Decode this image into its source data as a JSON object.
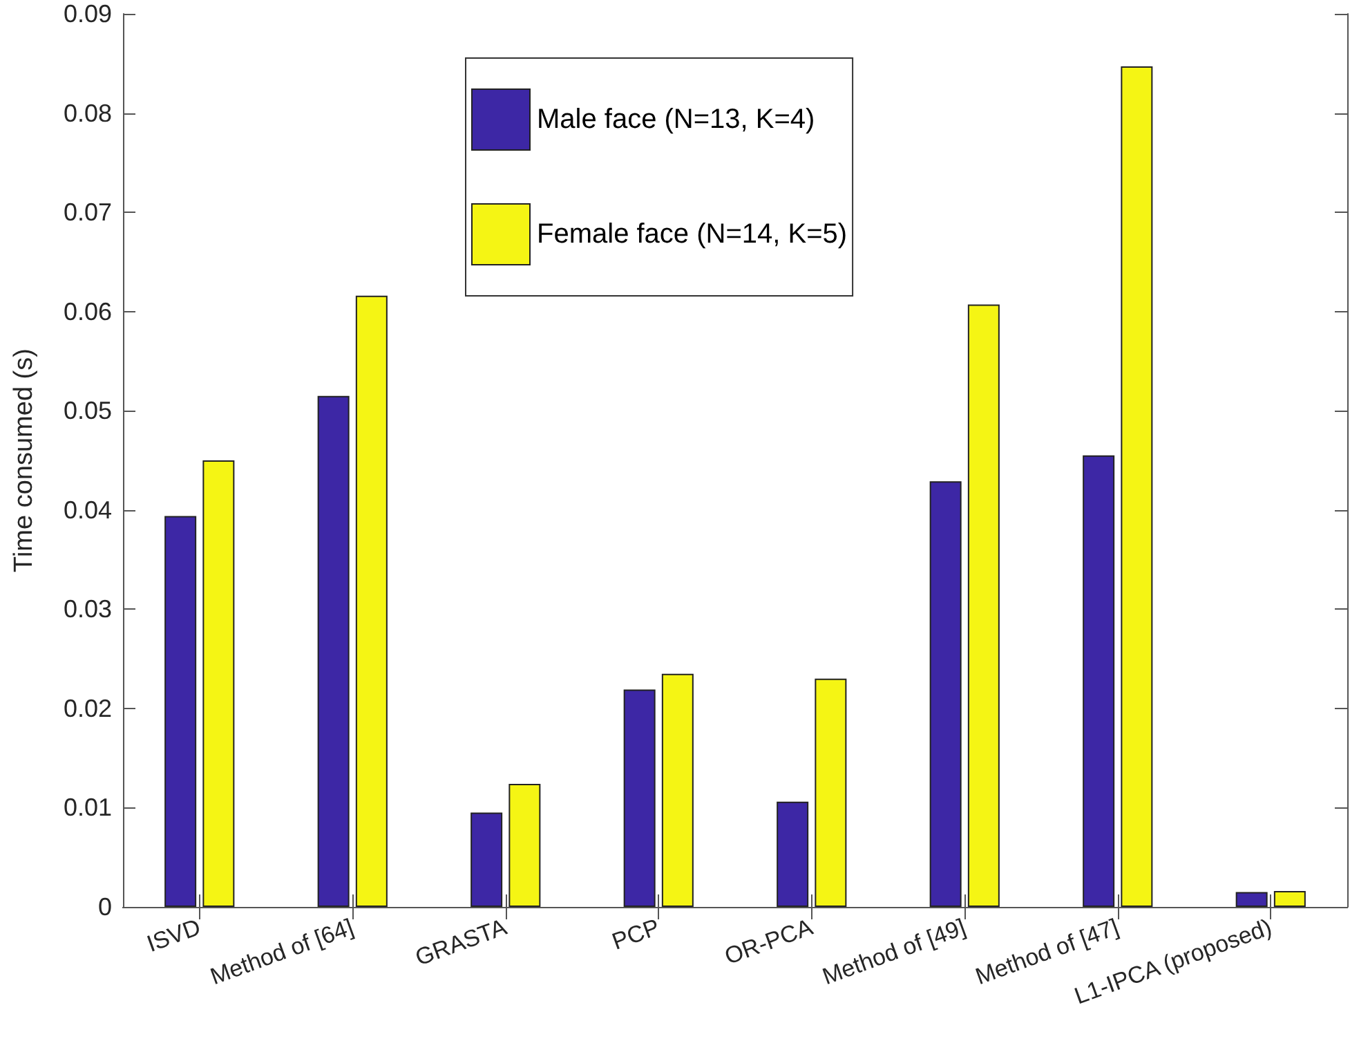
{
  "chart_data": {
    "type": "bar",
    "ylabel": "Time consumed (s)",
    "categories": [
      "ISVD",
      "Method of [64]",
      "GRASTA",
      "PCP",
      "OR-PCA",
      "Method of [49]",
      "Method of [47]",
      "L1-IPCA (proposed)"
    ],
    "series": [
      {
        "name": "Male face (N=13, K=4)",
        "color": "#3d27a5",
        "values": [
          0.0394,
          0.0515,
          0.0095,
          0.0219,
          0.0106,
          0.0429,
          0.0455,
          0.0015
        ]
      },
      {
        "name": "Female face (N=14, K=5)",
        "color": "#f5f514",
        "values": [
          0.045,
          0.0616,
          0.0124,
          0.0235,
          0.023,
          0.0607,
          0.0847,
          0.0016
        ]
      }
    ],
    "ylim": [
      0,
      0.09
    ],
    "yticks": [
      0,
      0.01,
      0.02,
      0.03,
      0.04,
      0.05,
      0.06,
      0.07,
      0.08,
      0.09
    ],
    "grid": false,
    "legend": "top"
  }
}
